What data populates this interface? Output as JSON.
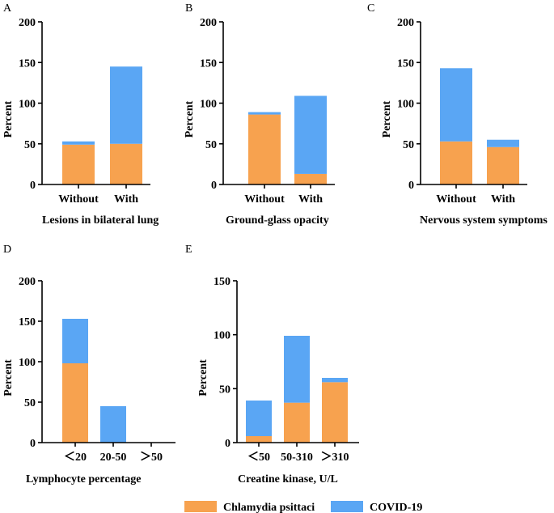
{
  "colors": {
    "chlamydia": "#F7A24F",
    "covid": "#5AA6F4"
  },
  "legend": [
    {
      "name": "Chlamydia psittaci",
      "color": "#F7A24F"
    },
    {
      "name": "COVID-19",
      "color": "#5AA6F4"
    }
  ],
  "chart_data": [
    {
      "letter": "A",
      "type": "bar",
      "stacked": true,
      "xlabel": "Lesions in bilateral lung",
      "ylabel": "Percent",
      "ylim": [
        0,
        200
      ],
      "yticks": [
        0,
        50,
        100,
        150,
        200
      ],
      "categories": [
        "Without",
        "With"
      ],
      "series": [
        {
          "name": "Chlamydia psittaci",
          "values": [
            49,
            50
          ]
        },
        {
          "name": "COVID-19",
          "values": [
            4,
            95
          ]
        }
      ]
    },
    {
      "letter": "B",
      "type": "bar",
      "stacked": true,
      "xlabel": "Ground-glass opacity",
      "ylabel": "Percent",
      "ylim": [
        0,
        200
      ],
      "yticks": [
        0,
        50,
        100,
        150,
        200
      ],
      "categories": [
        "Without",
        "With"
      ],
      "series": [
        {
          "name": "Chlamydia psittaci",
          "values": [
            86,
            13
          ]
        },
        {
          "name": "COVID-19",
          "values": [
            3,
            96
          ]
        }
      ]
    },
    {
      "letter": "C",
      "type": "bar",
      "stacked": true,
      "xlabel": "Nervous system symptoms",
      "ylabel": "Percent",
      "ylim": [
        0,
        200
      ],
      "yticks": [
        0,
        50,
        100,
        150,
        200
      ],
      "categories": [
        "Without",
        "With"
      ],
      "series": [
        {
          "name": "Chlamydia psittaci",
          "values": [
            53,
            46
          ]
        },
        {
          "name": "COVID-19",
          "values": [
            90,
            9
          ]
        }
      ]
    },
    {
      "letter": "D",
      "type": "bar",
      "stacked": true,
      "xlabel": "Lymphocyte percentage",
      "ylabel": "Percent",
      "ylim": [
        0,
        200
      ],
      "yticks": [
        0,
        50,
        100,
        150,
        200
      ],
      "categories": [
        "＜20",
        "20-50",
        "＞50"
      ],
      "series": [
        {
          "name": "Chlamydia psittaci",
          "values": [
            98,
            0,
            0
          ]
        },
        {
          "name": "COVID-19",
          "values": [
            55,
            45,
            0
          ]
        }
      ]
    },
    {
      "letter": "E",
      "type": "bar",
      "stacked": true,
      "xlabel": "Creatine kinase, U/L",
      "ylabel": "Percent",
      "ylim": [
        0,
        150
      ],
      "yticks": [
        0,
        50,
        100,
        150
      ],
      "categories": [
        "＜50",
        "50-310",
        "＞310"
      ],
      "series": [
        {
          "name": "Chlamydia psittaci",
          "values": [
            6,
            37,
            56
          ]
        },
        {
          "name": "COVID-19",
          "values": [
            33,
            62,
            4
          ]
        }
      ]
    }
  ]
}
